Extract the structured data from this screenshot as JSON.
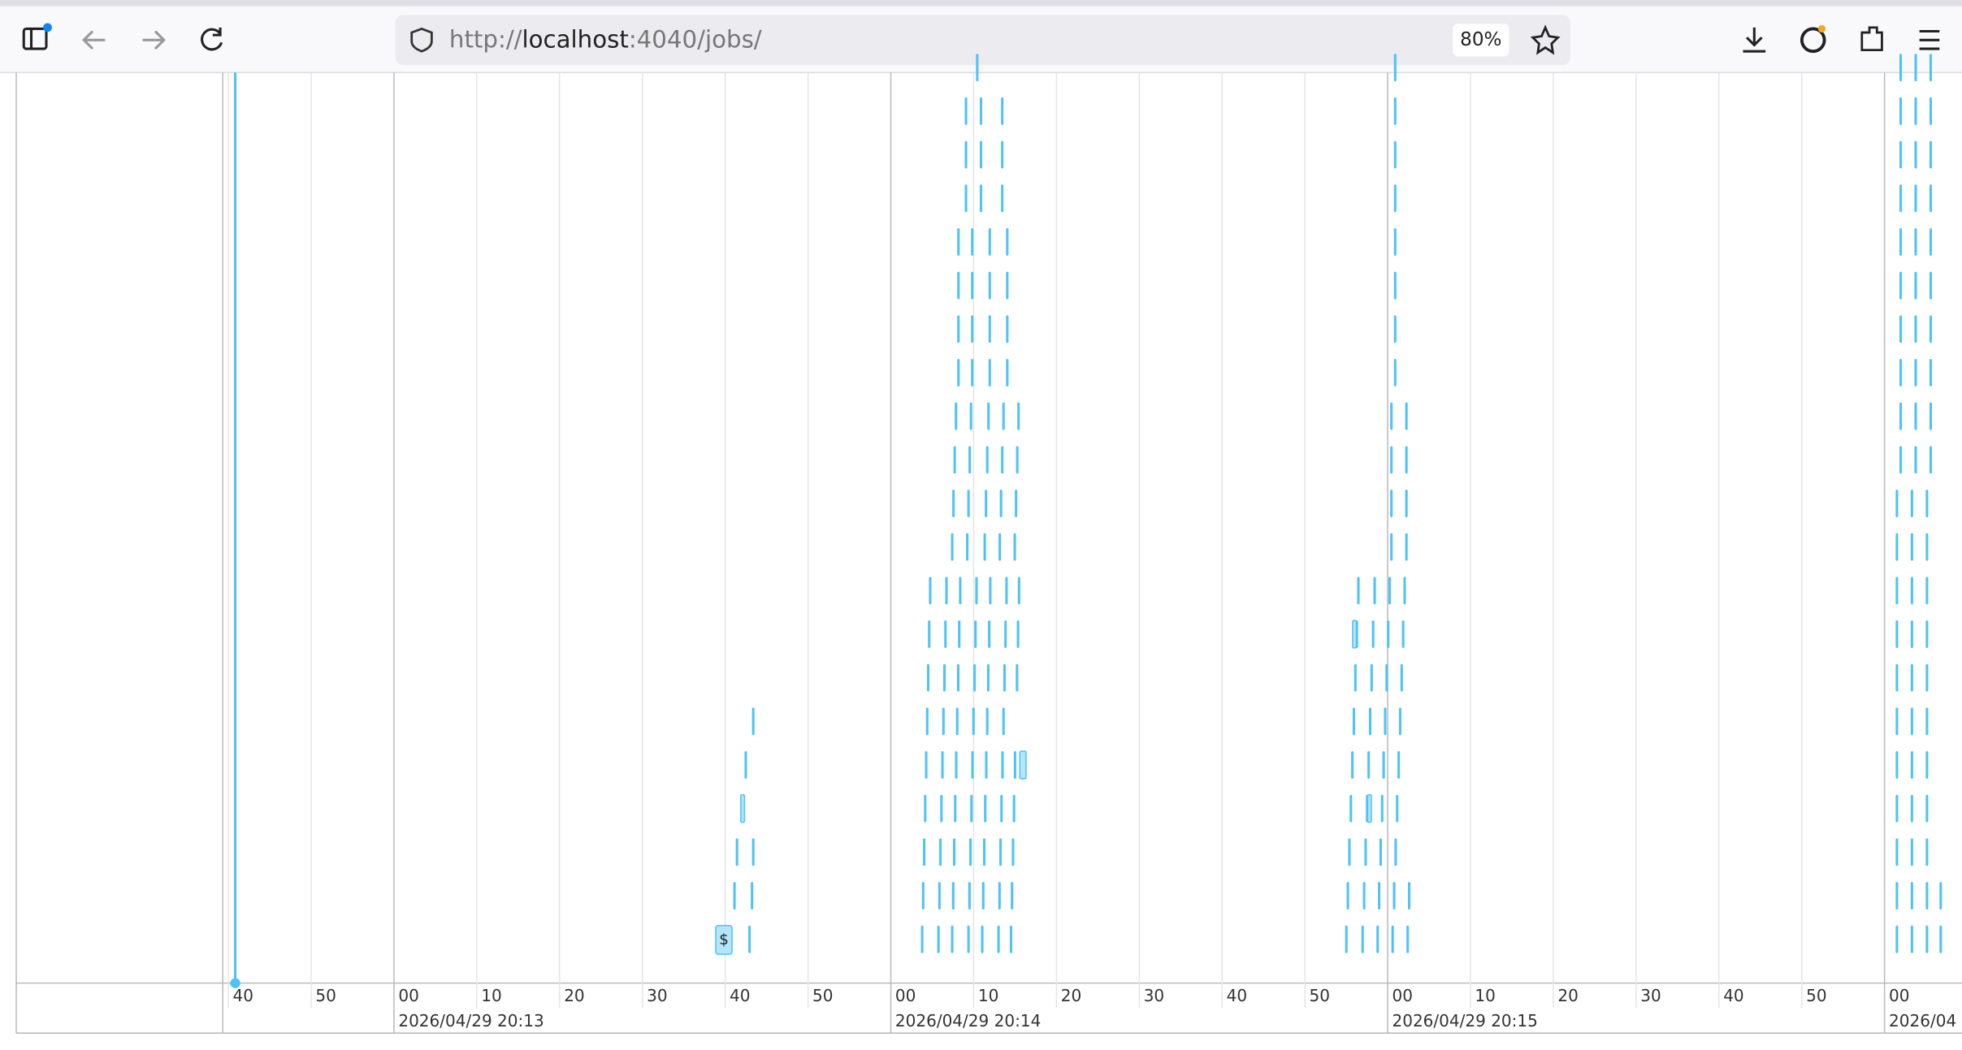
{
  "browser": {
    "url": {
      "scheme": "http://",
      "host": "localhost",
      "rest": ":4040/jobs/"
    },
    "zoom": "80%"
  },
  "timeline": {
    "minor_labels": [
      "40",
      "50",
      "00",
      "10",
      "20",
      "30",
      "40",
      "50",
      "00",
      "10",
      "20",
      "30",
      "40",
      "50",
      "00",
      "10",
      "20",
      "30",
      "40",
      "50",
      "00"
    ],
    "major_labels": [
      "2026/04/29 20:13",
      "2026/04/29 20:14",
      "2026/04/29 20:15",
      "2026/04"
    ],
    "box_label": "$"
  }
}
